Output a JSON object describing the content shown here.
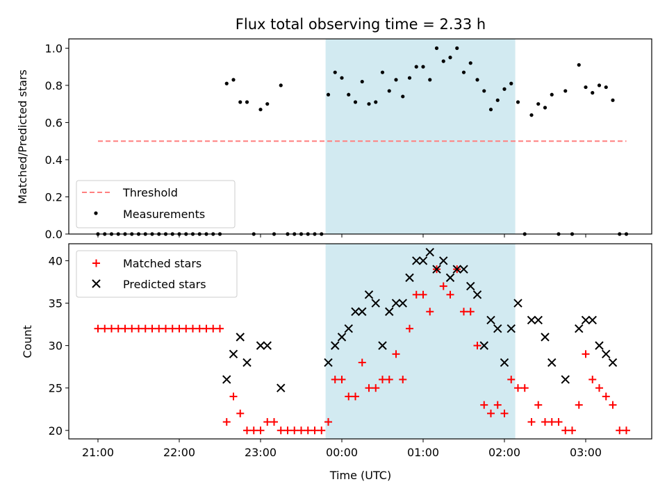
{
  "chart_data": [
    {
      "type": "scatter",
      "title": "Flux total observing time = 2.33 h",
      "xlabel": "",
      "ylabel": "Matched/Predicted stars",
      "ylim": [
        0,
        1.05
      ],
      "yticks": [
        "0.0",
        "0.2",
        "0.4",
        "0.6",
        "0.8",
        "1.0"
      ],
      "shaded_span": {
        "start": "23:48",
        "end": "02:08",
        "color": "#add8e6"
      },
      "threshold": {
        "name": "Threshold",
        "value": 0.5,
        "color": "#ff7f7f",
        "style": "dashed"
      },
      "legend": {
        "position": "lower-left",
        "entries": [
          "Threshold",
          "Measurements"
        ]
      },
      "series": [
        {
          "name": "Measurements",
          "marker": "dot",
          "color": "#000000",
          "x": [
            "21:00",
            "21:05",
            "21:10",
            "21:15",
            "21:20",
            "21:25",
            "21:30",
            "21:35",
            "21:40",
            "21:45",
            "21:50",
            "21:55",
            "22:00",
            "22:05",
            "22:10",
            "22:15",
            "22:20",
            "22:25",
            "22:30",
            "22:35",
            "22:40",
            "22:45",
            "22:50",
            "22:55",
            "23:00",
            "23:05",
            "23:10",
            "23:15",
            "23:20",
            "23:25",
            "23:30",
            "23:35",
            "23:40",
            "23:45",
            "23:50",
            "23:55",
            "00:00",
            "00:05",
            "00:10",
            "00:15",
            "00:20",
            "00:25",
            "00:30",
            "00:35",
            "00:40",
            "00:45",
            "00:50",
            "00:55",
            "01:00",
            "01:05",
            "01:10",
            "01:15",
            "01:20",
            "01:25",
            "01:30",
            "01:35",
            "01:40",
            "01:45",
            "01:50",
            "01:55",
            "02:00",
            "02:05",
            "02:10",
            "02:15",
            "02:20",
            "02:25",
            "02:30",
            "02:35",
            "02:40",
            "02:45",
            "02:50",
            "02:55",
            "03:00",
            "03:05",
            "03:10",
            "03:15",
            "03:20",
            "03:25",
            "03:30"
          ],
          "y": [
            0,
            0,
            0,
            0,
            0,
            0,
            0,
            0,
            0,
            0,
            0,
            0,
            0,
            0,
            0,
            0,
            0,
            0,
            0,
            0.81,
            0.83,
            0.71,
            0.71,
            0,
            0.67,
            0.7,
            0,
            0.8,
            0,
            0,
            0,
            0,
            0,
            0,
            0.75,
            0.87,
            0.84,
            0.75,
            0.71,
            0.82,
            0.7,
            0.71,
            0.87,
            0.77,
            0.83,
            0.74,
            0.84,
            0.9,
            0.9,
            0.83,
            1.0,
            0.93,
            0.95,
            1.0,
            0.87,
            0.92,
            0.83,
            0.77,
            0.67,
            0.72,
            0.78,
            0.81,
            0.71,
            0,
            0.64,
            0.7,
            0.68,
            0.75,
            0,
            0.77,
            0,
            0.91,
            0.79,
            0.76,
            0.8,
            0.79,
            0.72,
            0,
            0
          ]
        }
      ]
    },
    {
      "type": "scatter",
      "title": "",
      "xlabel": "Time (UTC)",
      "ylabel": "Count",
      "ylim": [
        19,
        42
      ],
      "yticks": [
        "20",
        "25",
        "30",
        "35",
        "40"
      ],
      "xticks": [
        "21:00",
        "22:00",
        "23:00",
        "00:00",
        "01:00",
        "02:00",
        "03:00"
      ],
      "shaded_span": {
        "start": "23:48",
        "end": "02:08",
        "color": "#add8e6"
      },
      "legend": {
        "position": "top-left",
        "entries": [
          "Matched stars",
          "Predicted stars"
        ]
      },
      "series": [
        {
          "name": "Matched stars",
          "marker": "plus",
          "color": "#ff0000",
          "x": [
            "21:00",
            "21:05",
            "21:10",
            "21:15",
            "21:20",
            "21:25",
            "21:30",
            "21:35",
            "21:40",
            "21:45",
            "21:50",
            "21:55",
            "22:00",
            "22:05",
            "22:10",
            "22:15",
            "22:20",
            "22:25",
            "22:30",
            "22:35",
            "22:40",
            "22:45",
            "22:50",
            "22:55",
            "23:00",
            "23:05",
            "23:10",
            "23:15",
            "23:20",
            "23:25",
            "23:30",
            "23:35",
            "23:40",
            "23:45",
            "23:50",
            "23:55",
            "00:00",
            "00:05",
            "00:10",
            "00:15",
            "00:20",
            "00:25",
            "00:30",
            "00:35",
            "00:40",
            "00:45",
            "00:50",
            "00:55",
            "01:00",
            "01:05",
            "01:10",
            "01:15",
            "01:20",
            "01:25",
            "01:30",
            "01:35",
            "01:40",
            "01:45",
            "01:50",
            "01:55",
            "02:00",
            "02:05",
            "02:10",
            "02:15",
            "02:20",
            "02:25",
            "02:30",
            "02:35",
            "02:40",
            "02:45",
            "02:50",
            "02:55",
            "03:00",
            "03:05",
            "03:10",
            "03:15",
            "03:20",
            "03:25",
            "03:30"
          ],
          "y": [
            32,
            32,
            32,
            32,
            32,
            32,
            32,
            32,
            32,
            32,
            32,
            32,
            32,
            32,
            32,
            32,
            32,
            32,
            32,
            21,
            24,
            22,
            20,
            20,
            20,
            21,
            21,
            20,
            20,
            20,
            20,
            20,
            20,
            20,
            21,
            26,
            26,
            24,
            24,
            28,
            25,
            25,
            26,
            26,
            29,
            26,
            32,
            36,
            36,
            34,
            39,
            37,
            36,
            39,
            34,
            34,
            30,
            23,
            22,
            23,
            22,
            26,
            25,
            25,
            21,
            23,
            21,
            21,
            21,
            20,
            20,
            23,
            29,
            26,
            25,
            24,
            23,
            20,
            20
          ]
        },
        {
          "name": "Predicted stars",
          "marker": "x",
          "color": "#000000",
          "x": [
            "22:35",
            "22:40",
            "22:45",
            "22:50",
            "23:00",
            "23:05",
            "23:15",
            "23:50",
            "23:55",
            "00:00",
            "00:05",
            "00:10",
            "00:15",
            "00:20",
            "00:25",
            "00:30",
            "00:35",
            "00:40",
            "00:45",
            "00:50",
            "00:55",
            "01:00",
            "01:05",
            "01:10",
            "01:15",
            "01:20",
            "01:25",
            "01:30",
            "01:35",
            "01:40",
            "01:45",
            "01:50",
            "01:55",
            "02:00",
            "02:05",
            "02:10",
            "02:20",
            "02:25",
            "02:30",
            "02:35",
            "02:45",
            "02:55",
            "03:00",
            "03:05",
            "03:10",
            "03:15",
            "03:20"
          ],
          "y": [
            26,
            29,
            31,
            28,
            30,
            30,
            25,
            28,
            30,
            31,
            32,
            34,
            34,
            36,
            35,
            30,
            34,
            35,
            35,
            38,
            40,
            40,
            41,
            39,
            40,
            38,
            39,
            39,
            37,
            36,
            30,
            33,
            32,
            28,
            32,
            35,
            33,
            33,
            31,
            28,
            26,
            32,
            33,
            33,
            30,
            29,
            28
          ]
        }
      ]
    }
  ]
}
